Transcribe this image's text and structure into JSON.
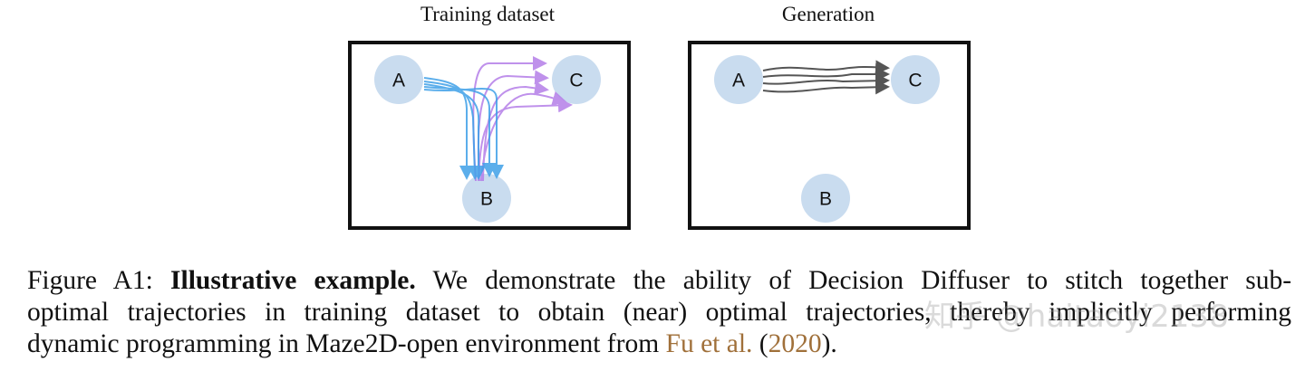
{
  "panels": [
    {
      "title": "Training dataset",
      "nodes": [
        "A",
        "B",
        "C"
      ]
    },
    {
      "title": "Generation",
      "nodes": [
        "A",
        "B",
        "C"
      ]
    }
  ],
  "colors": {
    "node": "#c9dcef",
    "blue_traj": "#3fa0e8",
    "purple_traj": "#b57ee8",
    "gen_traj": "#555555",
    "citation": "#a0703a"
  },
  "caption": {
    "label": "Figure A1:",
    "bold": "Illustrative example.",
    "text1": "We demonstrate the ability of Decision Diffuser to stitch together sub-",
    "text2": "optimal trajectories in training dataset to obtain (near) optimal trajectories, thereby implicitly performing",
    "text3": "dynamic programming in Maze2D-open environment from",
    "cite_author": "Fu et al.",
    "cite_year": "2020",
    "open": "(",
    "close": ")."
  },
  "watermark": "知乎 @haitaoyi2138"
}
